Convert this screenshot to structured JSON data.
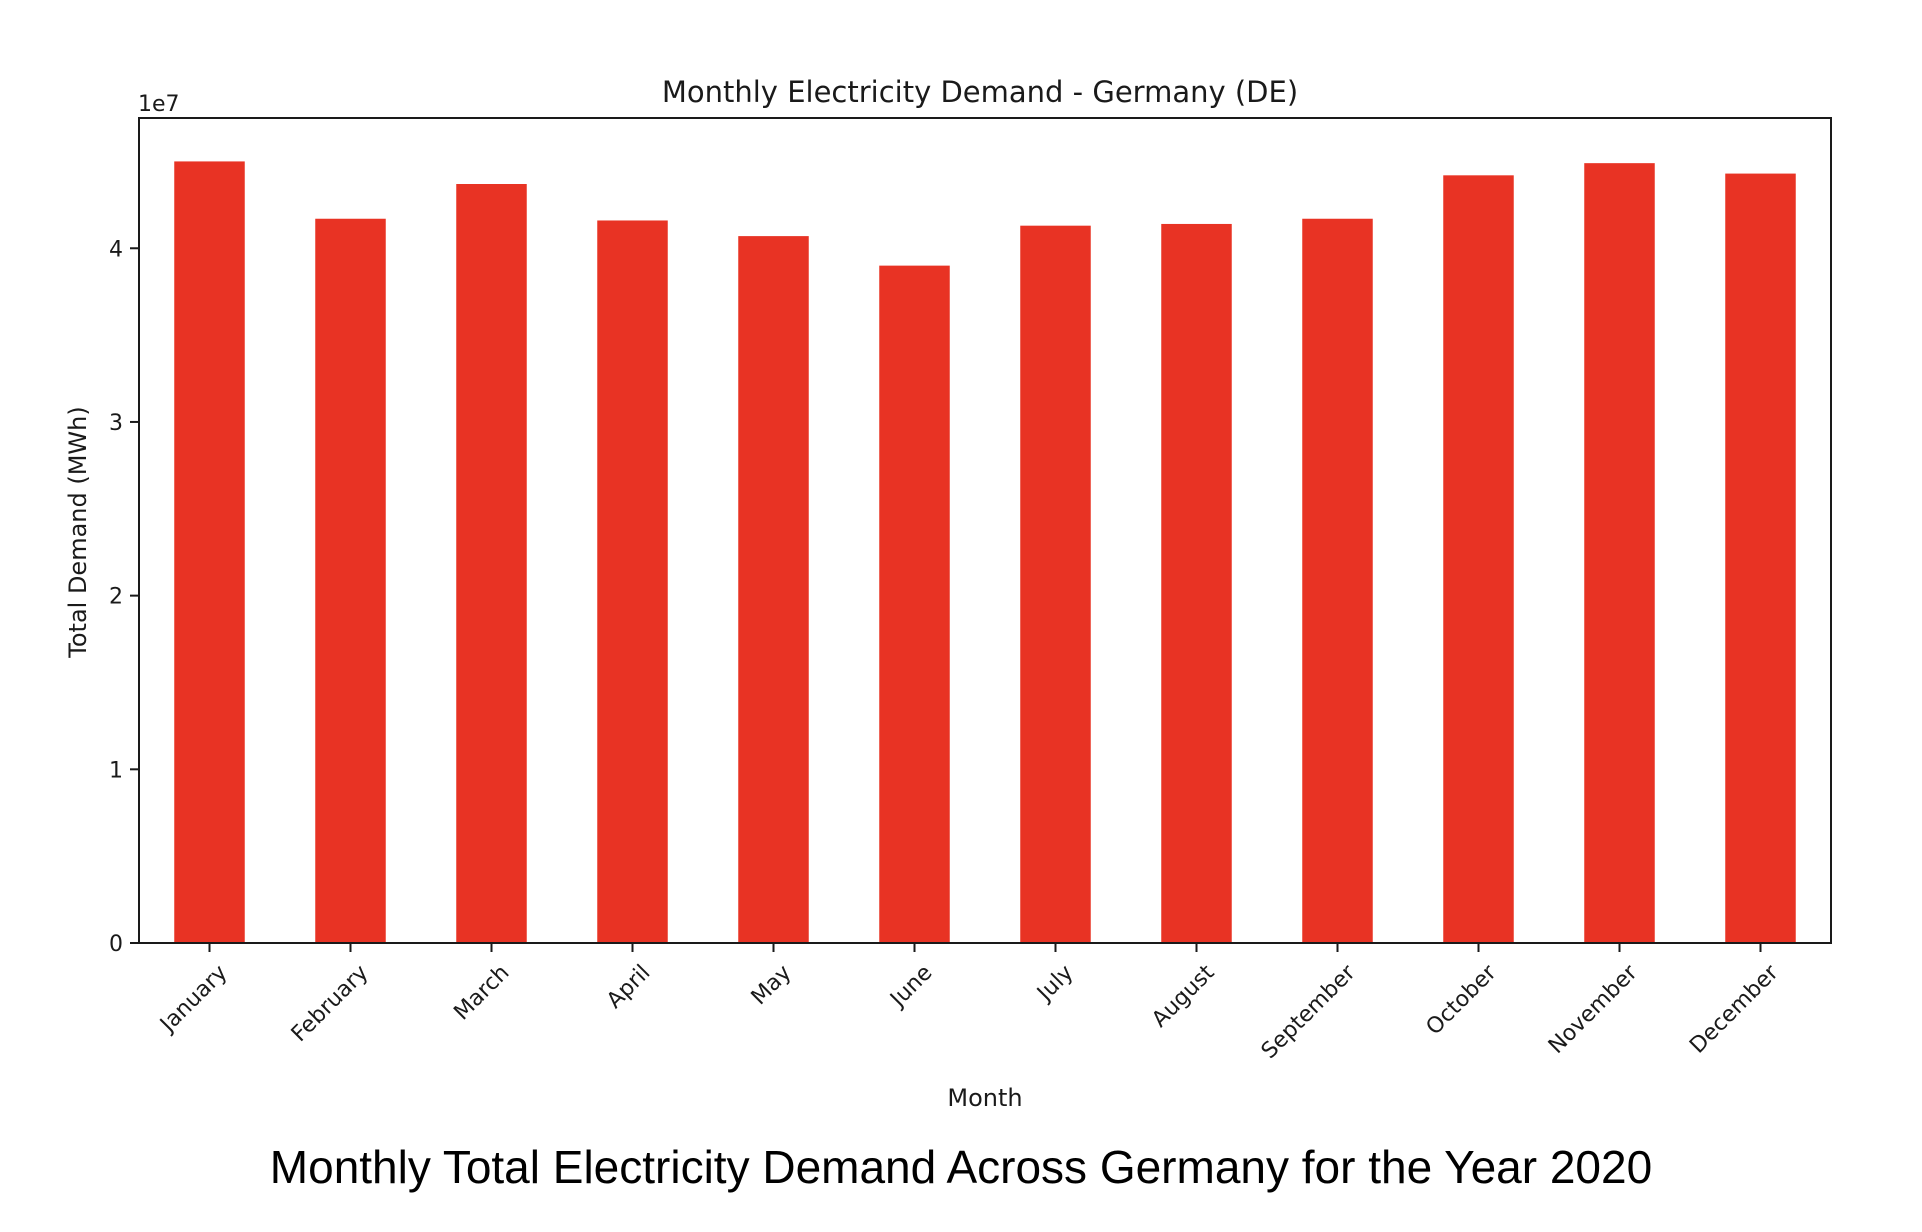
{
  "caption": "Monthly Total Electricity Demand Across Germany for the Year 2020",
  "chart_data": {
    "type": "bar",
    "title": "Monthly Electricity Demand - Germany (DE)",
    "xlabel": "Month",
    "ylabel": "Total Demand (MWh)",
    "y_offset_label": "1e7",
    "categories": [
      "January",
      "February",
      "March",
      "April",
      "May",
      "June",
      "July",
      "August",
      "September",
      "October",
      "November",
      "December"
    ],
    "values": [
      45000000,
      41700000,
      43700000,
      41600000,
      40700000,
      39000000,
      41300000,
      41400000,
      41700000,
      44200000,
      44900000,
      44300000
    ],
    "yticks": [
      0,
      10000000,
      20000000,
      30000000,
      40000000
    ],
    "ytick_labels": [
      "0",
      "1",
      "2",
      "3",
      "4"
    ],
    "ylim": [
      0,
      47500000
    ],
    "grid": false,
    "bar_color": "#e83324"
  }
}
